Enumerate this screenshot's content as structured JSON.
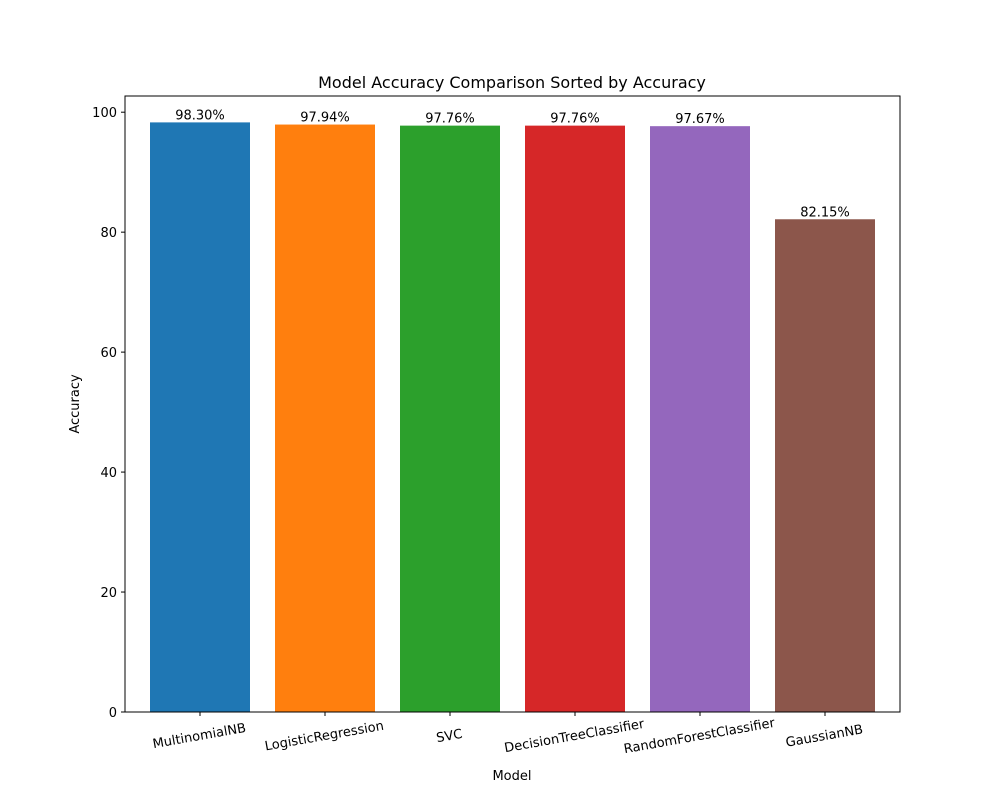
{
  "chart_data": {
    "type": "bar",
    "title": "Model Accuracy Comparison Sorted by Accuracy",
    "xlabel": "Model",
    "ylabel": "Accuracy",
    "ylim": [
      0,
      102.7
    ],
    "y_ticks": [
      0,
      20,
      40,
      60,
      80,
      100
    ],
    "categories": [
      "MultinomialNB",
      "LogisticRegression",
      "SVC",
      "DecisionTreeClassifier",
      "RandomForestClassifier",
      "GaussianNB"
    ],
    "values": [
      98.3,
      97.94,
      97.76,
      97.76,
      97.67,
      82.15
    ],
    "value_labels": [
      "98.30%",
      "97.94%",
      "97.76%",
      "97.76%",
      "97.67%",
      "82.15%"
    ],
    "colors": [
      "#1f77b4",
      "#ff7f0e",
      "#2ca02c",
      "#d62728",
      "#9467bd",
      "#8c564b"
    ],
    "grid": false,
    "x_tick_rotation_deg": 10
  }
}
